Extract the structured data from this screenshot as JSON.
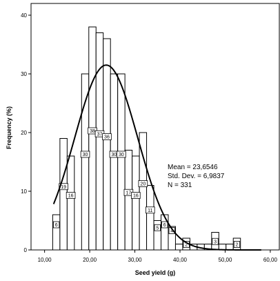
{
  "chart_data": {
    "type": "bar",
    "subtype": "histogram-with-normal-curve",
    "xlabel": "Seed yield (g)",
    "ylabel": "Frequency (%)",
    "xlim": [
      7,
      62
    ],
    "ylim": [
      0,
      42
    ],
    "x_ticks": [
      {
        "value": 10,
        "label": "10,00"
      },
      {
        "value": 20,
        "label": "20,00"
      },
      {
        "value": 30,
        "label": "30,00"
      },
      {
        "value": 40,
        "label": "40,00"
      },
      {
        "value": 50,
        "label": "50,00"
      },
      {
        "value": 60,
        "label": "60,00"
      }
    ],
    "y_ticks": [
      {
        "value": 0,
        "label": "0"
      },
      {
        "value": 10,
        "label": "10"
      },
      {
        "value": 20,
        "label": "20"
      },
      {
        "value": 30,
        "label": "30"
      },
      {
        "value": 40,
        "label": "40"
      }
    ],
    "bin_width": 1.6,
    "bins": [
      {
        "x": 11.8,
        "value": 6,
        "label": "6"
      },
      {
        "x": 13.4,
        "value": 19,
        "label": "19"
      },
      {
        "x": 15.0,
        "value": 16,
        "label": "16"
      },
      {
        "x": 16.6,
        "value": 0,
        "label": ""
      },
      {
        "x": 18.2,
        "value": 30,
        "label": "30"
      },
      {
        "x": 19.8,
        "value": 38,
        "label": "38"
      },
      {
        "x": 21.4,
        "value": 37,
        "label": "37"
      },
      {
        "x": 23.0,
        "value": 36,
        "label": "36"
      },
      {
        "x": 24.6,
        "value": 30,
        "label": "30"
      },
      {
        "x": 26.2,
        "value": 30,
        "label": "30"
      },
      {
        "x": 27.8,
        "value": 17,
        "label": "17"
      },
      {
        "x": 29.4,
        "value": 16,
        "label": "16"
      },
      {
        "x": 31.0,
        "value": 20,
        "label": "20"
      },
      {
        "x": 32.6,
        "value": 11,
        "label": "11"
      },
      {
        "x": 34.2,
        "value": 5,
        "label": "5"
      },
      {
        "x": 35.8,
        "value": 6,
        "label": "6"
      },
      {
        "x": 37.4,
        "value": 4,
        "label": "4"
      },
      {
        "x": 39.0,
        "value": 1,
        "label": ""
      },
      {
        "x": 40.6,
        "value": 2,
        "label": "2"
      },
      {
        "x": 42.2,
        "value": 1,
        "label": ""
      },
      {
        "x": 43.8,
        "value": 1,
        "label": ""
      },
      {
        "x": 45.4,
        "value": 1,
        "label": ""
      },
      {
        "x": 47.0,
        "value": 3,
        "label": "3"
      },
      {
        "x": 48.6,
        "value": 1,
        "label": ""
      },
      {
        "x": 50.2,
        "value": 1,
        "label": ""
      },
      {
        "x": 51.8,
        "value": 2,
        "label": "2"
      }
    ],
    "normal_curve": {
      "mean": 23.6546,
      "sd": 6.9837,
      "peak": 31.5
    },
    "stats": {
      "mean": "Mean = 23,6546",
      "sd": "Std. Dev. = 6,9837",
      "n": "N = 331"
    },
    "colors": {
      "bar_fill": "#ffffff",
      "bar_stroke": "#000000",
      "curve": "#000000"
    }
  }
}
